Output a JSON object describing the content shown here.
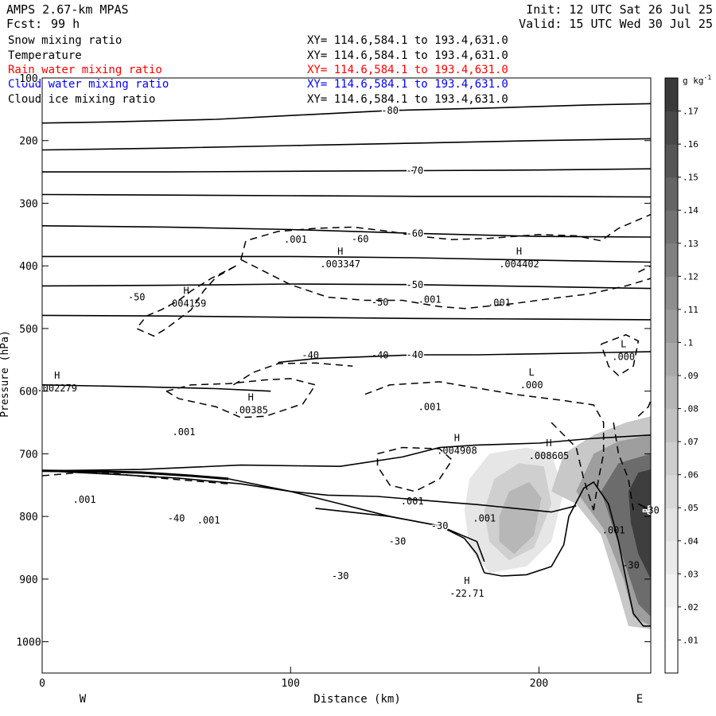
{
  "header": {
    "model": "AMPS 2.67-km MPAS",
    "forecast_label": "Fcst:",
    "forecast_hours": "99 h",
    "init": "Init: 12 UTC Sat 26 Jul 25",
    "valid": "Valid: 15 UTC Wed 30 Jul 25"
  },
  "fields": [
    {
      "name": "Snow mixing ratio",
      "xy": "XY= 114.6,584.1 to 193.4,631.0",
      "color": "#000000"
    },
    {
      "name": "Temperature",
      "xy": "XY= 114.6,584.1 to 193.4,631.0",
      "color": "#000000"
    },
    {
      "name": "Rain water mixing ratio",
      "xy": "XY= 114.6,584.1 to 193.4,631.0",
      "color": "#ff0000"
    },
    {
      "name": "Cloud water mixing ratio",
      "xy": "XY= 114.6,584.1 to 193.4,631.0",
      "color": "#0000ff"
    },
    {
      "name": "Cloud ice mixing ratio",
      "xy": "XY= 114.6,584.1 to 193.4,631.0",
      "color": "#000000"
    }
  ],
  "chart_data": {
    "type": "contour",
    "title": "",
    "xlabel": "Distance (km)",
    "ylabel": "Pressure (hPa)",
    "xlim": [
      0,
      245
    ],
    "ylim": [
      1050,
      100
    ],
    "x_ticks": [
      0,
      100,
      200
    ],
    "y_ticks": [
      100,
      200,
      300,
      400,
      500,
      600,
      700,
      800,
      900,
      1000
    ],
    "direction_labels": {
      "left": "W",
      "right": "E"
    },
    "grid": false,
    "colorbar": {
      "unit": "g kg",
      "unit_exp": "-1",
      "levels": [
        ".01",
        ".02",
        ".03",
        ".04",
        ".05",
        ".06",
        ".07",
        ".08",
        ".09",
        ".1",
        ".11",
        ".12",
        ".13",
        ".14",
        ".15",
        ".16",
        ".17"
      ],
      "shades": [
        "#ffffff",
        "#fafafa",
        "#f3f3f3",
        "#ebebeb",
        "#e2e2e2",
        "#d8d8d8",
        "#cdcdcd",
        "#c1c1c1",
        "#b5b5b5",
        "#a8a8a8",
        "#9b9b9b",
        "#8e8e8e",
        "#808080",
        "#727272",
        "#646464",
        "#565656",
        "#484848",
        "#3a3a3a"
      ]
    },
    "temperature_isotherms": [
      {
        "label": "-80",
        "points": [
          [
            0,
            172
          ],
          [
            30,
            170
          ],
          [
            70,
            166
          ],
          [
            100,
            160
          ],
          [
            140,
            152
          ],
          [
            180,
            148
          ],
          [
            220,
            143
          ],
          [
            245,
            141
          ]
        ]
      },
      {
        "label": "",
        "points": [
          [
            0,
            215
          ],
          [
            50,
            212
          ],
          [
            100,
            208
          ],
          [
            150,
            204
          ],
          [
            200,
            200
          ],
          [
            245,
            197
          ]
        ]
      },
      {
        "label": "-70",
        "points": [
          [
            0,
            250
          ],
          [
            50,
            250
          ],
          [
            100,
            249
          ],
          [
            150,
            248
          ],
          [
            200,
            247
          ],
          [
            245,
            245
          ]
        ]
      },
      {
        "label": "",
        "points": [
          [
            0,
            286
          ],
          [
            50,
            287
          ],
          [
            100,
            288
          ],
          [
            150,
            289
          ],
          [
            200,
            289
          ],
          [
            245,
            290
          ]
        ]
      },
      {
        "label": "-60",
        "points": [
          [
            0,
            336
          ],
          [
            50,
            338
          ],
          [
            100,
            342
          ],
          [
            150,
            348
          ],
          [
            200,
            353
          ],
          [
            245,
            354
          ]
        ]
      },
      {
        "label": "",
        "points": [
          [
            0,
            385
          ],
          [
            50,
            385
          ],
          [
            100,
            385
          ],
          [
            150,
            387
          ],
          [
            200,
            391
          ],
          [
            245,
            394
          ]
        ]
      },
      {
        "label": "-50",
        "points": [
          [
            0,
            432
          ],
          [
            50,
            431
          ],
          [
            100,
            429
          ],
          [
            150,
            430
          ],
          [
            200,
            433
          ],
          [
            245,
            436
          ]
        ]
      },
      {
        "label": "",
        "points": [
          [
            0,
            479
          ],
          [
            50,
            480
          ],
          [
            100,
            482
          ],
          [
            150,
            484
          ],
          [
            200,
            485
          ],
          [
            245,
            486
          ]
        ]
      },
      {
        "label": "-40",
        "points": [
          [
            95,
            554
          ],
          [
            110,
            548
          ],
          [
            130,
            545
          ],
          [
            150,
            542
          ],
          [
            175,
            542
          ],
          [
            205,
            540
          ],
          [
            245,
            537
          ]
        ]
      },
      {
        "label": "",
        "points": [
          [
            0,
            590
          ],
          [
            40,
            593
          ],
          [
            70,
            596
          ],
          [
            92,
            600
          ]
        ]
      },
      {
        "label": "",
        "points": [
          [
            0,
            727
          ],
          [
            30,
            733
          ],
          [
            55,
            739
          ],
          [
            80,
            748
          ],
          [
            100,
            760
          ],
          [
            115,
            766
          ],
          [
            135,
            768
          ],
          [
            150,
            773
          ],
          [
            165,
            778
          ],
          [
            175,
            781
          ],
          [
            190,
            787
          ],
          [
            205,
            793
          ],
          [
            215,
            783
          ]
        ]
      },
      {
        "label": "-30",
        "points": [
          [
            110,
            787
          ],
          [
            140,
            800
          ],
          [
            160,
            815
          ],
          [
            175,
            840
          ],
          [
            178,
            872
          ]
        ]
      },
      {
        "label": "",
        "points": [
          [
            0,
            727
          ],
          [
            40,
            725
          ],
          [
            80,
            718
          ],
          [
            120,
            720
          ],
          [
            145,
            705
          ],
          [
            160,
            690
          ],
          [
            175,
            686
          ],
          [
            200,
            683
          ],
          [
            220,
            676
          ],
          [
            245,
            670
          ]
        ]
      },
      {
        "label": "-30",
        "points": [
          [
            240,
            780
          ],
          [
            245,
            790
          ]
        ]
      }
    ],
    "extrema": [
      {
        "type": "H",
        "value": ".004159",
        "x": 58,
        "p": 455
      },
      {
        "type": "H",
        "value": ".003347",
        "x": 120,
        "p": 392
      },
      {
        "type": "H",
        "value": ".004402",
        "x": 192,
        "p": 392
      },
      {
        "type": "L",
        "value": ".000",
        "x": 234,
        "p": 540
      },
      {
        "type": "H",
        "value": ".002279",
        "x": 6,
        "p": 590
      },
      {
        "type": "H",
        "value": ".00385",
        "x": 84,
        "p": 625
      },
      {
        "type": "L",
        "value": ".000",
        "x": 197,
        "p": 585
      },
      {
        "type": "H",
        "value": ".004908",
        "x": 167,
        "p": 690
      },
      {
        "type": "H",
        "value": ".008605",
        "x": 204,
        "p": 698
      },
      {
        "type": "H",
        "value": "-22.71",
        "x": 171,
        "p": 918
      }
    ],
    "contour_labels": [
      {
        "text": ".001",
        "x": 102,
        "p": 363
      },
      {
        "text": "-60",
        "x": 128,
        "p": 362
      },
      {
        "text": ".001",
        "x": 156,
        "p": 459
      },
      {
        "text": "-50",
        "x": 136,
        "p": 463
      },
      {
        "text": ".001",
        "x": 184,
        "p": 464
      },
      {
        "text": "-50",
        "x": 38,
        "p": 455
      },
      {
        "text": "-40",
        "x": 108,
        "p": 548
      },
      {
        "text": "-40",
        "x": 136,
        "p": 548
      },
      {
        "text": ".001",
        "x": 156,
        "p": 630
      },
      {
        "text": ".001",
        "x": 57,
        "p": 670
      },
      {
        "text": ".001",
        "x": 17,
        "p": 778
      },
      {
        "text": "-40",
        "x": 54,
        "p": 808
      },
      {
        "text": ".001",
        "x": 67,
        "p": 811
      },
      {
        "text": ".001",
        "x": 149,
        "p": 781
      },
      {
        "text": "-30",
        "x": 143,
        "p": 845
      },
      {
        "text": "-30",
        "x": 120,
        "p": 900
      },
      {
        "text": ".001",
        "x": 178,
        "p": 808
      },
      {
        "text": ".001",
        "x": 230,
        "p": 827
      },
      {
        "text": "-30",
        "x": 237,
        "p": 883
      }
    ]
  }
}
